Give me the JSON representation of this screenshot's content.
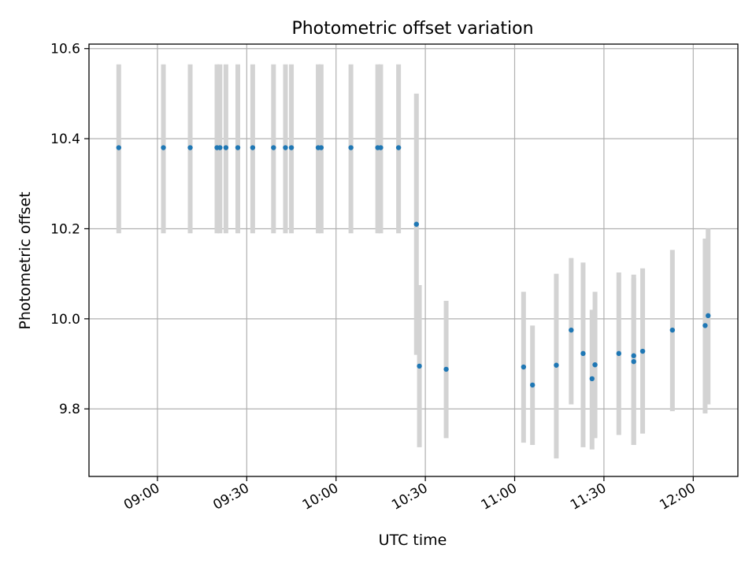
{
  "chart_data": {
    "type": "scatter",
    "title": "Photometric offset variation",
    "xlabel": "UTC time",
    "ylabel": "Photometric offset",
    "xlim": [
      "08:37",
      "12:15"
    ],
    "ylim": [
      9.65,
      10.61
    ],
    "grid": true,
    "x_ticks": [
      "09:00",
      "09:30",
      "10:00",
      "10:30",
      "11:00",
      "11:30",
      "12:00"
    ],
    "y_ticks": [
      9.8,
      10.0,
      10.2,
      10.4,
      10.6
    ],
    "y_tick_labels": [
      "9.8",
      "10.0",
      "10.2",
      "10.4",
      "10.6"
    ],
    "colors": {
      "points": "#1f77b4",
      "error_bars": "#d3d3d3",
      "grid": "#b0b0b0"
    },
    "series": [
      {
        "points": [
          {
            "time": "08:47",
            "y": 10.38,
            "low": 10.19,
            "high": 10.565
          },
          {
            "time": "09:02",
            "y": 10.38,
            "low": 10.19,
            "high": 10.565
          },
          {
            "time": "09:11",
            "y": 10.38,
            "low": 10.19,
            "high": 10.565
          },
          {
            "time": "09:20",
            "y": 10.38,
            "low": 10.19,
            "high": 10.565
          },
          {
            "time": "09:21",
            "y": 10.38,
            "low": 10.19,
            "high": 10.565
          },
          {
            "time": "09:23",
            "y": 10.38,
            "low": 10.19,
            "high": 10.565
          },
          {
            "time": "09:27",
            "y": 10.38,
            "low": 10.19,
            "high": 10.565
          },
          {
            "time": "09:32",
            "y": 10.38,
            "low": 10.19,
            "high": 10.565
          },
          {
            "time": "09:39",
            "y": 10.38,
            "low": 10.19,
            "high": 10.565
          },
          {
            "time": "09:43",
            "y": 10.38,
            "low": 10.19,
            "high": 10.565
          },
          {
            "time": "09:45",
            "y": 10.38,
            "low": 10.19,
            "high": 10.565
          },
          {
            "time": "09:54",
            "y": 10.38,
            "low": 10.19,
            "high": 10.565
          },
          {
            "time": "09:55",
            "y": 10.38,
            "low": 10.19,
            "high": 10.565
          },
          {
            "time": "10:05",
            "y": 10.38,
            "low": 10.19,
            "high": 10.565
          },
          {
            "time": "10:14",
            "y": 10.38,
            "low": 10.19,
            "high": 10.565
          },
          {
            "time": "10:15",
            "y": 10.38,
            "low": 10.19,
            "high": 10.565
          },
          {
            "time": "10:21",
            "y": 10.38,
            "low": 10.19,
            "high": 10.565
          },
          {
            "time": "10:27",
            "y": 10.21,
            "low": 9.92,
            "high": 10.5
          },
          {
            "time": "10:28",
            "y": 9.895,
            "low": 9.715,
            "high": 10.075
          },
          {
            "time": "10:37",
            "y": 9.888,
            "low": 9.735,
            "high": 10.04
          },
          {
            "time": "11:03",
            "y": 9.893,
            "low": 9.725,
            "high": 10.06
          },
          {
            "time": "11:06",
            "y": 9.853,
            "low": 9.72,
            "high": 9.985
          },
          {
            "time": "11:14",
            "y": 9.897,
            "low": 9.69,
            "high": 10.1
          },
          {
            "time": "11:19",
            "y": 9.975,
            "low": 9.81,
            "high": 10.135
          },
          {
            "time": "11:23",
            "y": 9.923,
            "low": 9.715,
            "high": 10.125
          },
          {
            "time": "11:26",
            "y": 9.867,
            "low": 9.71,
            "high": 10.02
          },
          {
            "time": "11:27",
            "y": 9.898,
            "low": 9.735,
            "high": 10.06
          },
          {
            "time": "11:35",
            "y": 9.923,
            "low": 9.742,
            "high": 10.103
          },
          {
            "time": "11:40",
            "y": 9.918,
            "low": 9.72,
            "high": 10.098
          },
          {
            "time": "11:40",
            "y": 9.905,
            "low": 9.72,
            "high": 10.09
          },
          {
            "time": "11:43",
            "y": 9.928,
            "low": 9.745,
            "high": 10.112
          },
          {
            "time": "11:53",
            "y": 9.975,
            "low": 9.795,
            "high": 10.153
          },
          {
            "time": "12:04",
            "y": 9.985,
            "low": 9.79,
            "high": 10.178
          },
          {
            "time": "12:05",
            "y": 10.007,
            "low": 9.81,
            "high": 10.2
          }
        ]
      }
    ]
  }
}
